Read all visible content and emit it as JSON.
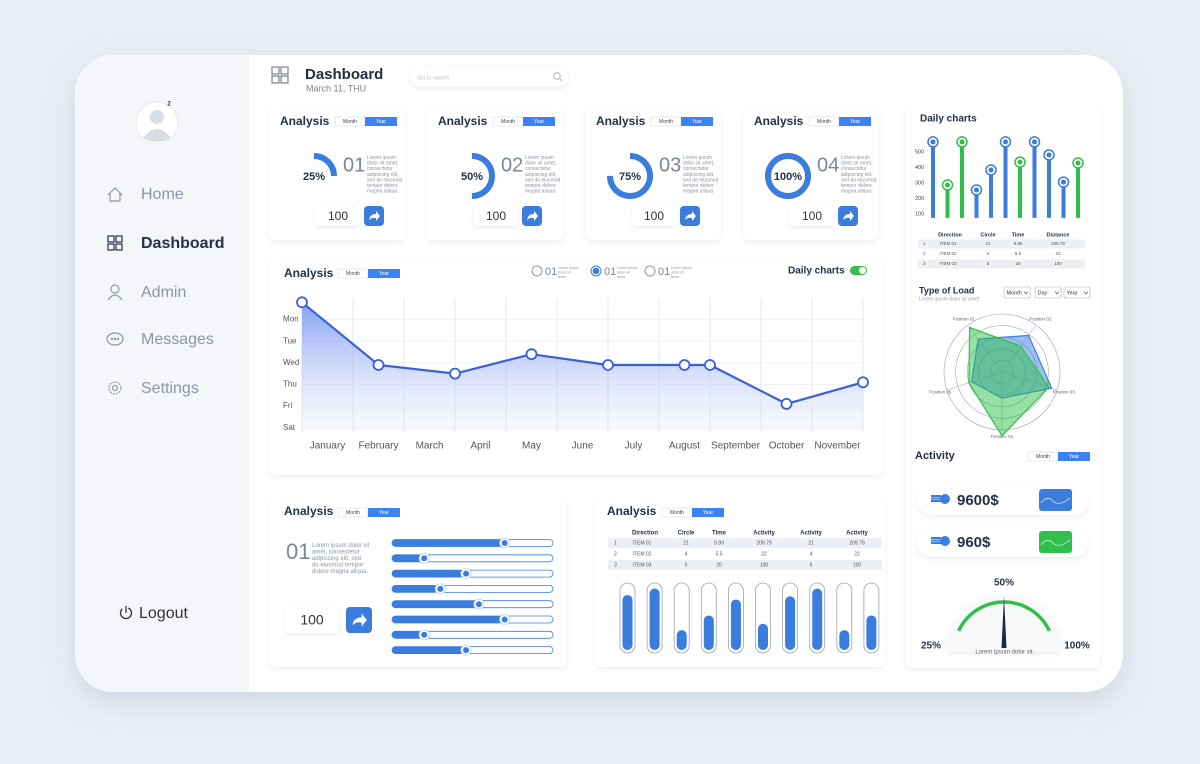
{
  "sidebar": {
    "avatar_badge": "2",
    "menu": [
      "Home",
      "Dashboard",
      "Admin",
      "Messages",
      "Settings"
    ],
    "active_index": 1,
    "logout": "Logout"
  },
  "header": {
    "title": "Dashboard",
    "date": "March 11, THU",
    "search": "Go to search"
  },
  "cards": [
    {
      "title": "Analysis",
      "tabs": [
        "Month",
        "Year"
      ],
      "percent": 25,
      "percent_label": "25%",
      "number": "01",
      "text": "Lorem ipsum dolor sit amet, consectetur adipiscing elit, sed do eiusmod tempor dolore magna aliqua.",
      "input": "100"
    },
    {
      "title": "Analysis",
      "tabs": [
        "Month",
        "Year"
      ],
      "percent": 50,
      "percent_label": "50%",
      "number": "02",
      "text": "Lorem ipsum dolor sit amet, consectetur adipiscing elit, sed do eiusmod tempor dolore magna aliqua.",
      "input": "100"
    },
    {
      "title": "Analysis",
      "tabs": [
        "Month",
        "Year"
      ],
      "percent": 75,
      "percent_label": "75%",
      "number": "03",
      "text": "Lorem ipsum dolor sit amet, consectetur adipiscing elit, sed do eiusmod tempor dolore magna aliqua.",
      "input": "100"
    },
    {
      "title": "Analysis",
      "tabs": [
        "Month",
        "Year"
      ],
      "percent": 100,
      "percent_label": "100%",
      "number": "04",
      "text": "Lorem ipsum dolor sit amet, consectetur adipiscing elit, sed do eiusmod tempor dolore magna aliqua.",
      "input": "100"
    }
  ],
  "main_chart": {
    "title": "Analysis",
    "tabs": [
      "Month",
      "Year"
    ],
    "legend": [
      {
        "number": "01",
        "text": "Lorem ipsum dolor sit amet"
      },
      {
        "number": "01",
        "text": "Lorem ipsum dolor sit amet"
      },
      {
        "number": "01",
        "text": "Lorem ipsum dolor sit amet"
      }
    ],
    "legend_selected": 1,
    "toggle_label": "Daily charts",
    "chart": {
      "type": "line",
      "color": "#3a5fd9",
      "categories": [
        "January",
        "February",
        "March",
        "April",
        "May",
        "June",
        "July",
        "August",
        "September",
        "October",
        "November"
      ],
      "x": [
        0,
        1.5,
        3,
        4.5,
        6,
        7.5,
        8,
        9.5,
        11
      ],
      "values": [
        5.8,
        2.9,
        2.5,
        3.4,
        2.9,
        2.9,
        2.9,
        1.1,
        2.1
      ],
      "xlim": [
        0,
        11
      ],
      "ylim": [
        -0.2,
        6
      ],
      "yticks": [
        {
          "value": 5,
          "label": "Mon"
        },
        {
          "value": 4,
          "label": "Tue"
        },
        {
          "value": 3,
          "label": "Wed"
        },
        {
          "value": 2,
          "label": "Thu"
        },
        {
          "value": 1,
          "label": "Fri"
        },
        {
          "value": 0,
          "label": "Sat"
        }
      ]
    }
  },
  "daily_charts": {
    "title": "Daily charts",
    "chart": {
      "type": "lollipop",
      "values": [
        565,
        287,
        565,
        255,
        384,
        565,
        435,
        565,
        481,
        306,
        429
      ],
      "colors": [
        "#3b7ddd",
        "#2fbf4a",
        "#2fbf4a",
        "#3b7ddd",
        "#3b7ddd",
        "#3b7ddd",
        "#2fbf4a",
        "#3b7ddd",
        "#3b7ddd",
        "#3b7ddd",
        "#2fbf4a"
      ],
      "ylim": [
        75,
        600
      ],
      "yticks": [
        100,
        200,
        300,
        400,
        500
      ]
    },
    "table": {
      "headers": [
        "Direction",
        "Circle",
        "Time",
        "Distance"
      ],
      "rows": [
        [
          "1",
          "ITEM 01",
          "21",
          "9.99",
          "209.79"
        ],
        [
          "2",
          "ITEM 02",
          "4",
          "5.5",
          "22"
        ],
        [
          "3",
          "ITEM 03",
          "5",
          "20",
          "100"
        ]
      ]
    }
  },
  "type_of_load": {
    "title": "Type of Load",
    "subtitle": "Lorem ipsum dolor sit amet",
    "selects": [
      "Month",
      "Day",
      "Year"
    ],
    "chart": {
      "type": "radar",
      "axes": [
        "Position 01",
        "Position 02",
        "Position 03",
        "Position 04",
        "Position 05"
      ],
      "rlim": [
        0,
        100
      ],
      "series": [
        {
          "color": "#3b7ddd",
          "values": [
            70,
            78,
            90,
            45,
            55
          ]
        },
        {
          "color": "#2fbf4a",
          "values": [
            95,
            55,
            85,
            110,
            60
          ]
        }
      ]
    }
  },
  "activity": {
    "title": "Activity",
    "tabs": [
      "Month",
      "Year"
    ],
    "items": [
      {
        "amount": "9600$",
        "color": "#3b7ddd"
      },
      {
        "amount": "960$",
        "color": "#2fbf4a"
      }
    ],
    "gauge": {
      "labels": [
        "25%",
        "50%",
        "100%"
      ],
      "caption": "Lorem ipsum dolor sit"
    }
  },
  "bottom_left": {
    "title": "Analysis",
    "tabs": [
      "Month",
      "Year"
    ],
    "number": "01",
    "text": "Lorem ipsum dolor sit amet, consectetur adipiscing elit, sed do eiusmod tempor dolore magna aliqua.",
    "input": "100",
    "sliders": [
      70,
      20,
      46,
      30,
      54,
      70,
      20,
      46
    ],
    "slider_lim": [
      0,
      100
    ]
  },
  "bottom_middle": {
    "title": "Analysis",
    "tabs": [
      "Month",
      "Year"
    ],
    "table": {
      "headers": [
        "Direction",
        "Circle",
        "Time",
        "Activity",
        "Activity",
        "Activity"
      ],
      "rows": [
        [
          "1",
          "ITEM 01",
          "21",
          "9.99",
          "209.79",
          "21",
          "209.79"
        ],
        [
          "2",
          "ITEM 02",
          "4",
          "5.5",
          "22",
          "4",
          "22"
        ],
        [
          "3",
          "ITEM 03",
          "5",
          "20",
          "100",
          "5",
          "100"
        ]
      ]
    },
    "chart": {
      "type": "bar",
      "color": "#3b7ddd",
      "values": [
        86,
        96,
        31,
        54,
        79,
        41,
        84,
        96,
        31,
        54
      ],
      "ylim": [
        0,
        100
      ]
    }
  }
}
